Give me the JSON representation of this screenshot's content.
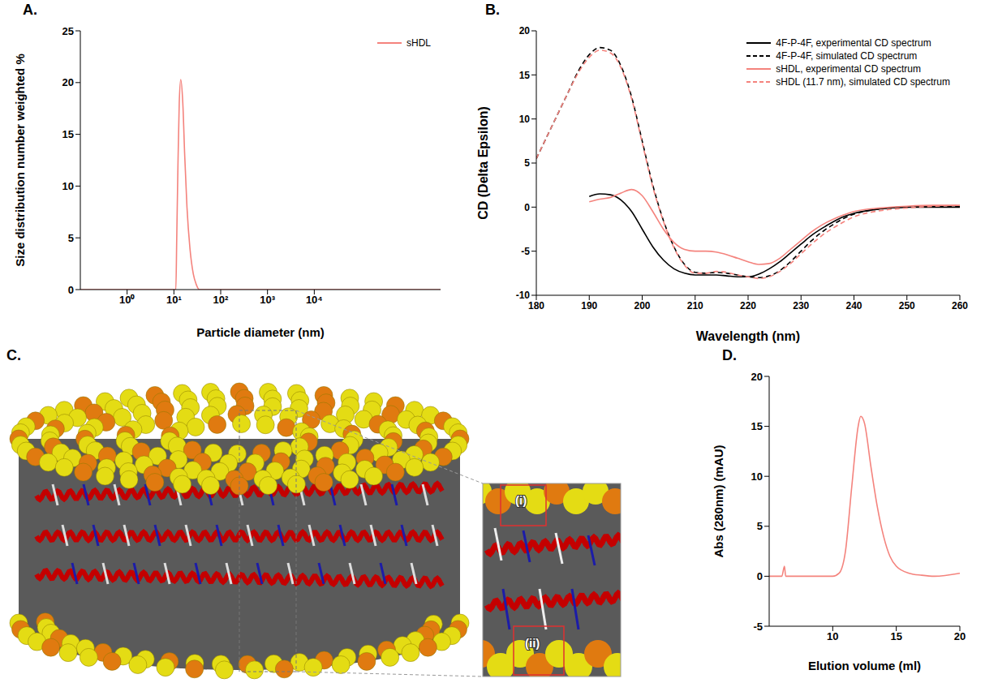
{
  "chart_data": [
    {
      "panel": "A.",
      "type": "line",
      "xlabel": "Particle diameter (nm)",
      "ylabel": "Size distribution number weighted %",
      "log": "x",
      "xlim": [
        0.1,
        5000000
      ],
      "xticks": [
        {
          "value": 1,
          "label": "10⁰"
        },
        {
          "value": 10,
          "label": "10¹"
        },
        {
          "value": 100,
          "label": "10²"
        },
        {
          "value": 1000,
          "label": "10³"
        },
        {
          "value": 10000,
          "label": "10⁴"
        }
      ],
      "ylim": [
        0,
        25
      ],
      "yticks": [
        0,
        5,
        10,
        15,
        20,
        25
      ],
      "legend": "upper right",
      "x": [
        0.1,
        1,
        10,
        11,
        11.5,
        12.2,
        13,
        14,
        15.5,
        17,
        19,
        22,
        26,
        30,
        35,
        100,
        10000,
        5000000
      ],
      "series": [
        {
          "name": "sHDL",
          "color": "#f4837d",
          "line_style": "solid",
          "values": [
            0,
            0,
            0,
            0,
            5,
            12,
            18,
            20.3,
            18,
            13,
            8,
            4,
            1.5,
            0.5,
            0,
            0,
            0,
            0
          ]
        }
      ]
    },
    {
      "panel": "B.",
      "type": "line",
      "xlabel": "Wavelength (nm)",
      "ylabel": "CD (Delta Epsilon)",
      "xlim": [
        180,
        260
      ],
      "xticks": [
        180,
        190,
        200,
        210,
        220,
        230,
        240,
        250,
        260
      ],
      "ylim": [
        -10,
        20
      ],
      "yticks": [
        -10,
        -5,
        0,
        5,
        10,
        15,
        20
      ],
      "legend": "upper right",
      "x": [
        180,
        182,
        184,
        186,
        188,
        190,
        192,
        194,
        196,
        198,
        200,
        202,
        204,
        206,
        208,
        210,
        212,
        214,
        216,
        218,
        220,
        222,
        224,
        226,
        228,
        230,
        232,
        234,
        236,
        238,
        240,
        245,
        250,
        255,
        260
      ],
      "series": [
        {
          "name": "4F-P-4F, experimental CD spectrum",
          "color": "#000000",
          "line_style": "solid",
          "values": [
            null,
            null,
            null,
            null,
            null,
            1.2,
            1.5,
            1.4,
            0.8,
            -0.5,
            -2.5,
            -4.5,
            -6,
            -7,
            -7.5,
            -7.7,
            -7.7,
            -7.7,
            -7.8,
            -7.9,
            -7.9,
            -7.6,
            -7,
            -6.2,
            -5.2,
            -4.2,
            -3.2,
            -2.4,
            -1.7,
            -1.1,
            -0.7,
            -0.2,
            0,
            0,
            0
          ]
        },
        {
          "name": "4F-P-4F, simulated CD spectrum",
          "color": "#000000",
          "line_style": "dashed",
          "values": [
            5.5,
            8,
            10.5,
            13,
            15.5,
            17.3,
            18.1,
            17.8,
            16,
            12.5,
            7.5,
            2.5,
            -1.5,
            -4.5,
            -6.5,
            -7.4,
            -7.5,
            -7.4,
            -7.5,
            -7.7,
            -7.9,
            -8,
            -7.8,
            -7.2,
            -6.2,
            -5,
            -3.8,
            -2.8,
            -2,
            -1.3,
            -0.8,
            -0.2,
            0,
            0.1,
            0.1
          ]
        },
        {
          "name": "sHDL, experimental CD spectrum",
          "color": "#f4837d",
          "line_style": "solid",
          "values": [
            null,
            null,
            null,
            null,
            null,
            0.6,
            0.9,
            1.1,
            1.6,
            2,
            1.3,
            -0.5,
            -2.5,
            -4,
            -4.8,
            -5,
            -5,
            -5.1,
            -5.4,
            -5.8,
            -6.2,
            -6.5,
            -6.4,
            -5.8,
            -4.8,
            -3.8,
            -2.8,
            -2,
            -1.4,
            -0.9,
            -0.5,
            -0.1,
            0.1,
            0.2,
            0.2
          ]
        },
        {
          "name": "sHDL (11.7 nm), simulated CD spectrum",
          "color": "#f4837d",
          "line_style": "dashed",
          "values": [
            5.5,
            8,
            10.5,
            13,
            15.3,
            17,
            17.8,
            17.5,
            15.8,
            12.3,
            7.3,
            2.3,
            -1.6,
            -4.6,
            -6.6,
            -7.5,
            -7.5,
            -7.3,
            -7.4,
            -7.7,
            -7.9,
            -8.1,
            -7.9,
            -7.3,
            -6.4,
            -5.3,
            -4.2,
            -3.2,
            -2.4,
            -1.7,
            -1.1,
            -0.4,
            -0.1,
            0.1,
            0.2
          ]
        }
      ]
    },
    {
      "panel": "D.",
      "type": "line",
      "xlabel": "Elution volume (ml)",
      "ylabel": "Abs (280nm) (mAU)",
      "xlim": [
        5,
        20
      ],
      "xticks": [
        10,
        15,
        20
      ],
      "ylim": [
        -5,
        20
      ],
      "yticks": [
        -5,
        0,
        5,
        10,
        15,
        20
      ],
      "x": [
        5,
        6,
        6.2,
        6.3,
        7,
        10,
        10.5,
        11,
        11.5,
        12,
        12.2,
        12.5,
        13,
        13.5,
        14,
        14.5,
        15,
        16,
        17,
        18,
        20
      ],
      "series": [
        {
          "color": "#f4837d",
          "line_style": "solid",
          "values": [
            0,
            0,
            1,
            0,
            0,
            0,
            0.3,
            2.5,
            9,
            15,
            16,
            15.3,
            11,
            7,
            4,
            2,
            1,
            0.3,
            0.1,
            0,
            0.3
          ]
        }
      ]
    }
  ],
  "diagram": {
    "panel": "C.",
    "labels": [
      "(i)",
      "(ii)"
    ]
  }
}
